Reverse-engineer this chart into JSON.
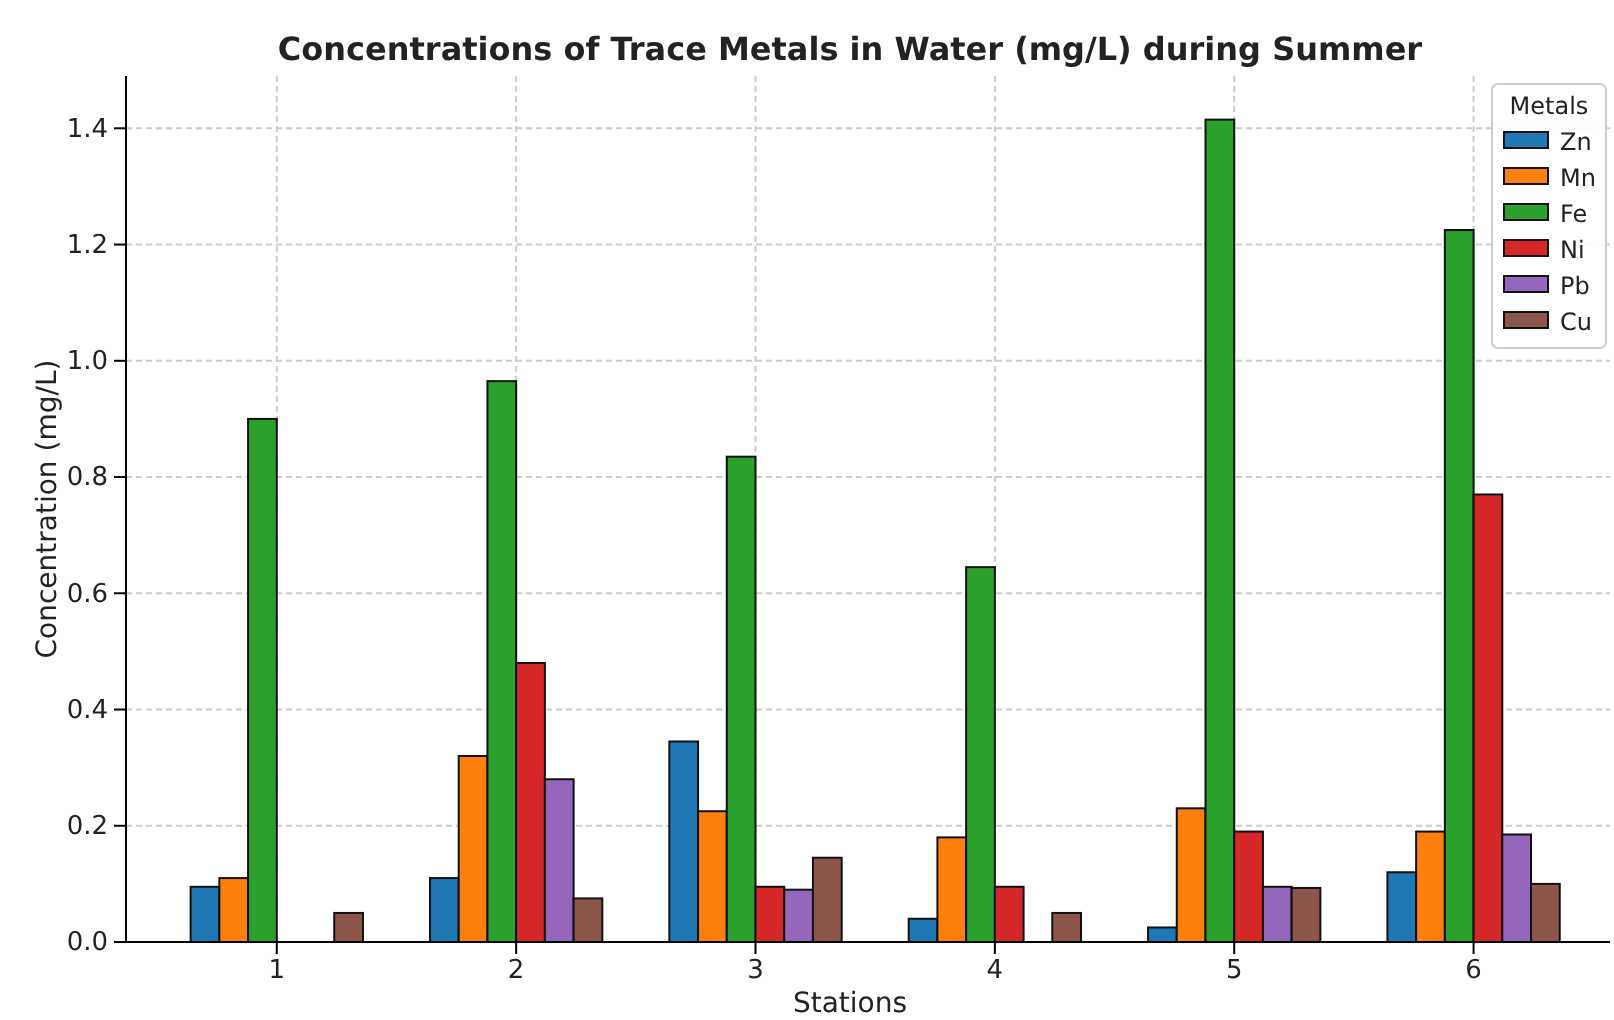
{
  "chart_data": {
    "type": "bar",
    "title": "Concentrations of Trace Metals in Water (mg/L) during Summer",
    "xlabel": "Stations",
    "ylabel": "Concentration (mg/L)",
    "legend_title": "Metals",
    "categories": [
      "1",
      "2",
      "3",
      "4",
      "5",
      "6"
    ],
    "series": [
      {
        "name": "Zn",
        "color": "#1f77b4",
        "values": [
          0.095,
          0.11,
          0.345,
          0.04,
          0.025,
          0.12
        ]
      },
      {
        "name": "Mn",
        "color": "#ff7f0e",
        "values": [
          0.11,
          0.32,
          0.225,
          0.18,
          0.23,
          0.19
        ]
      },
      {
        "name": "Fe",
        "color": "#2ca02c",
        "values": [
          0.9,
          0.965,
          0.835,
          0.645,
          1.415,
          1.225
        ]
      },
      {
        "name": "Ni",
        "color": "#d62728",
        "values": [
          0,
          0.48,
          0.095,
          0.095,
          0.19,
          0.77
        ]
      },
      {
        "name": "Pb",
        "color": "#9467bd",
        "values": [
          0,
          0.28,
          0.09,
          0,
          0.095,
          0.185
        ]
      },
      {
        "name": "Cu",
        "color": "#8c564b",
        "values": [
          0.05,
          0.075,
          0.145,
          0.05,
          0.093,
          0.1
        ]
      }
    ],
    "ylim": [
      0,
      1.49
    ],
    "yticks": [
      {
        "value": 0,
        "label": "0.0"
      },
      {
        "value": 0.2,
        "label": "0.2"
      },
      {
        "value": 0.4,
        "label": "0.4"
      },
      {
        "value": 0.6,
        "label": "0.6"
      },
      {
        "value": 0.8,
        "label": "0.8"
      },
      {
        "value": 1,
        "label": "1.0"
      },
      {
        "value": 1.2,
        "label": "1.2"
      },
      {
        "value": 1.4,
        "label": "1.4"
      }
    ],
    "grid": true,
    "legend": "top right"
  }
}
